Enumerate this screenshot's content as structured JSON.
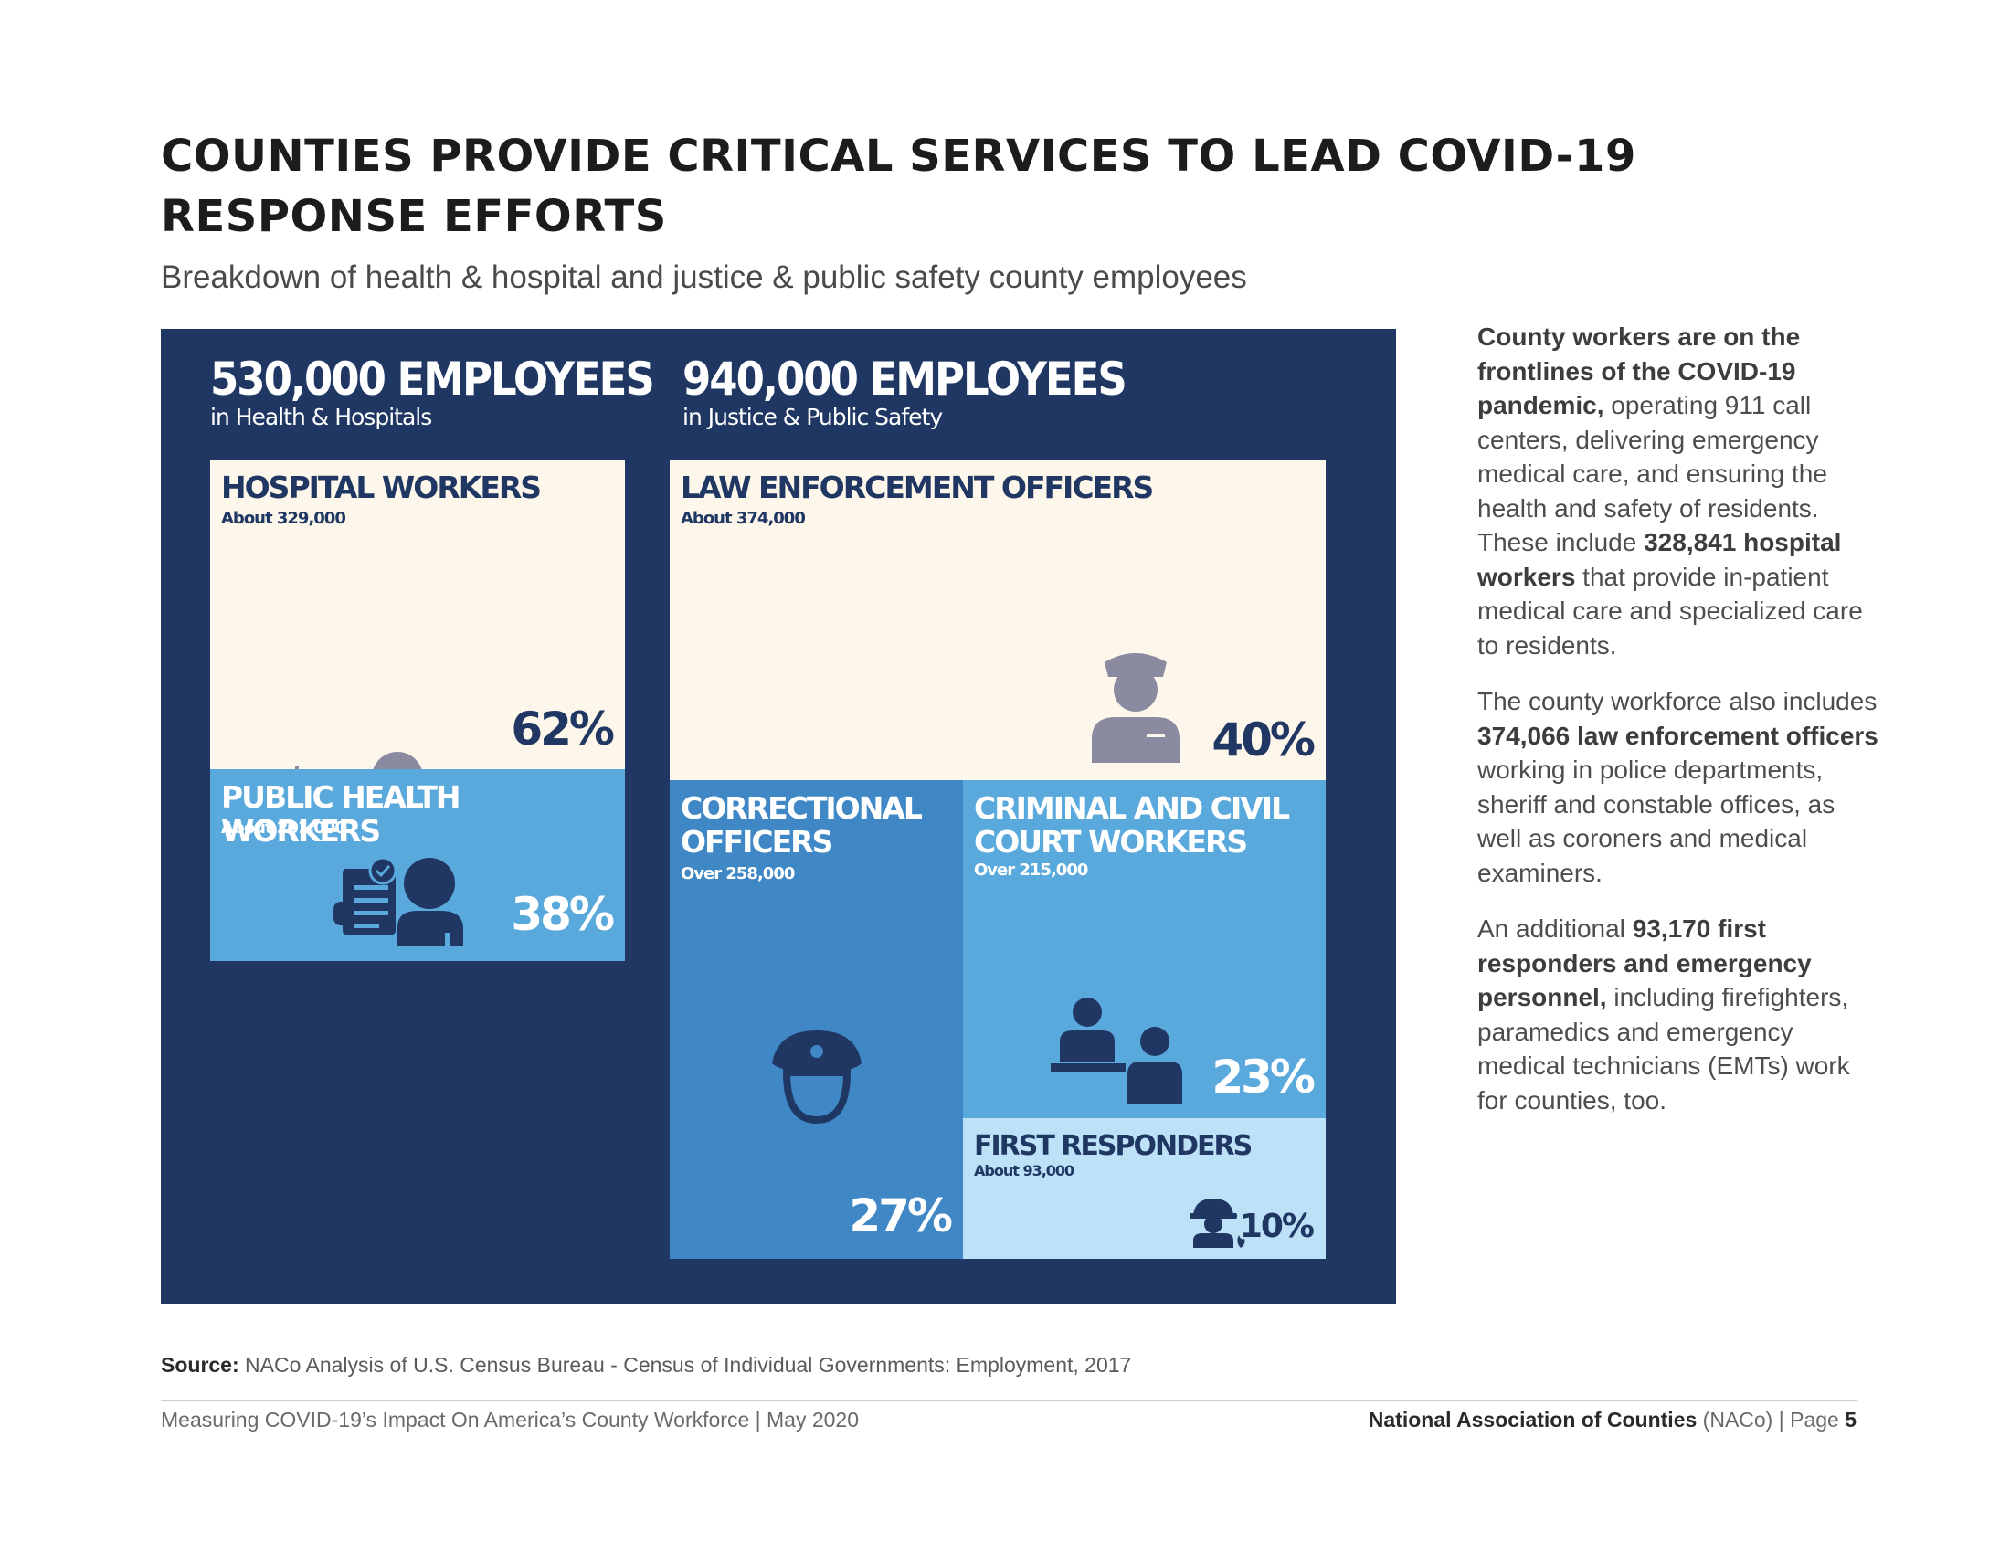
{
  "header": {
    "title_line1": "COUNTIES PROVIDE CRITICAL SERVICES TO LEAD COVID-19",
    "title_line2": "RESPONSE EFFORTS",
    "subtitle": "Breakdown of health & hospital and justice & public safety county employees"
  },
  "panel": {
    "health": {
      "count": "530,000 EMPLOYEES",
      "label": "in Health & Hospitals"
    },
    "justice": {
      "count": "940,000 EMPLOYEES",
      "label": "in Justice & Public Safety"
    },
    "tiles": {
      "hospital": {
        "title": "HOSPITAL WORKERS",
        "sub": "About 329,000",
        "pct": "62%",
        "share": 0.62
      },
      "public_health": {
        "title": "PUBLIC HEALTH WORKERS",
        "sub": "About 201,000",
        "pct": "38%",
        "share": 0.38
      },
      "law": {
        "title": "LAW ENFORCEMENT OFFICERS",
        "sub": "About 374,000",
        "pct": "40%",
        "share": 0.4
      },
      "correctional": {
        "title_line1": "CORRECTIONAL",
        "title_line2": "OFFICERS",
        "sub": "Over 258,000",
        "pct": "27%",
        "share": 0.27
      },
      "court": {
        "title_line1": "CRIMINAL AND CIVIL",
        "title_line2": "COURT WORKERS",
        "sub": "Over 215,000",
        "pct": "23%",
        "share": 0.23
      },
      "first": {
        "title": "FIRST RESPONDERS",
        "sub": "About 93,000",
        "pct": "10%",
        "share": 0.1
      }
    },
    "colors": {
      "navy": "#1f3762",
      "cream": "#fdf6ea",
      "mid_blue": "#5aa9dc",
      "deep_blue": "#3f88c5",
      "pale_blue": "#bde1f6",
      "icon_gray": "#8a8aa0"
    },
    "icons": [
      "virus-icon",
      "doctor-icon",
      "public-health-worker-icon",
      "police-officer-icon",
      "correctional-officer-icon",
      "court-workers-icon",
      "firefighter-icon"
    ]
  },
  "body": {
    "p1_b1": "County workers are on the frontlines of the COVID-19 pandemic,",
    "p1_t1": " operating 911 call centers, delivering emergency medical care, and ensuring the health and safety of residents. These include ",
    "p1_b2": "328,841 hospital workers",
    "p1_t2": " that provide in-patient medical care and specialized care to residents.",
    "p2_t1": "The county workforce also includes ",
    "p2_b1": "374,066 law enforcement officers",
    "p2_t2": " working in police departments, sheriff and constable offices, as well as coroners and medical examiners.",
    "p3_t1": "An additional ",
    "p3_b1": "93,170 first responders and emergency personnel,",
    "p3_t2": " including firefighters, paramedics and emergency medical technicians (EMTs) work for counties, too."
  },
  "source": {
    "label": "Source:",
    "text": " NACo Analysis of U.S. Census Bureau - Census of Individual Governments: Employment, 2017"
  },
  "footer": {
    "left": "Measuring COVID-19’s Impact On America’s County Workforce | May 2020",
    "org": "National Association of Counties",
    "abbr": " (NACo) | Page ",
    "page": "5"
  }
}
